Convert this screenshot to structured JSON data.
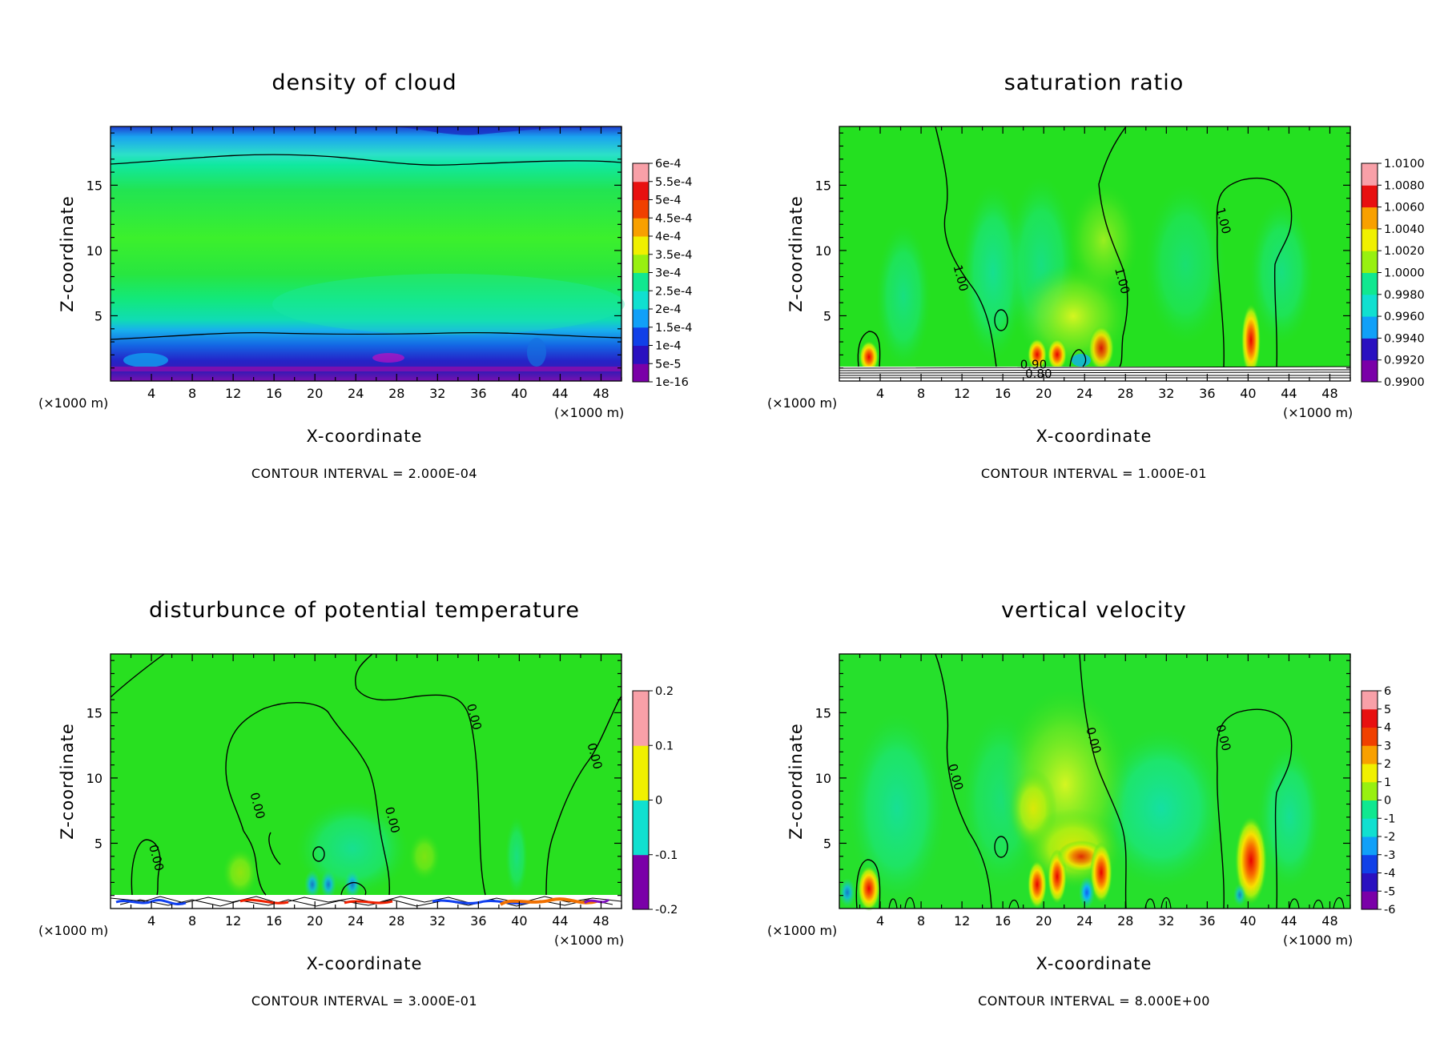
{
  "figure": {
    "x_unit_label": "(×1000 m)",
    "colors": {
      "contour_line": "#000000",
      "background": "#ffffff"
    }
  },
  "chart_data": [
    {
      "type": "heatmap",
      "title": "density of cloud",
      "xlabel": "X-coordinate",
      "ylabel": "Z-coordinate",
      "xlim": [
        0,
        50
      ],
      "ylim": [
        0,
        19.5
      ],
      "x_ticks": [
        4,
        8,
        12,
        16,
        20,
        24,
        28,
        32,
        36,
        40,
        44,
        48
      ],
      "y_ticks": [
        5,
        10,
        15
      ],
      "x_unit": "(×1000 m)",
      "contour_interval": "CONTOUR INTERVAL = 2.000E-04",
      "colorbar": [
        "1e-16",
        "5e-5",
        "1e-4",
        "1.5e-4",
        "2e-4",
        "2.5e-4",
        "3e-4",
        "3.5e-4",
        "4e-4",
        "4.5e-4",
        "5e-4",
        "5.5e-4",
        "6e-4"
      ],
      "contour_labels": []
    },
    {
      "type": "heatmap",
      "title": "saturation ratio",
      "xlabel": "X-coordinate",
      "ylabel": "Z-coordinate",
      "xlim": [
        0,
        50
      ],
      "ylim": [
        0,
        19.5
      ],
      "x_ticks": [
        4,
        8,
        12,
        16,
        20,
        24,
        28,
        32,
        36,
        40,
        44,
        48
      ],
      "y_ticks": [
        5,
        10,
        15
      ],
      "x_unit": "(×1000 m)",
      "contour_interval": "CONTOUR INTERVAL = 1.000E-01",
      "colorbar": [
        "0.9900",
        "0.9920",
        "0.9940",
        "0.9960",
        "0.9980",
        "1.0000",
        "1.0020",
        "1.0040",
        "1.0060",
        "1.0080",
        "1.0100"
      ],
      "contour_labels": [
        {
          "text": "1.00",
          "x": 11.5,
          "y": 7.8
        },
        {
          "text": "1.00",
          "x": 27.3,
          "y": 7.6
        },
        {
          "text": "1.00",
          "x": 37.2,
          "y": 12.2
        },
        {
          "text": "0.90",
          "x": 19.0,
          "y": 0.95
        },
        {
          "text": "0.80",
          "x": 19.5,
          "y": 0.25
        }
      ]
    },
    {
      "type": "heatmap",
      "title": "disturbunce of potential temperature",
      "xlabel": "X-coordinate",
      "ylabel": "Z-coordinate",
      "xlim": [
        0,
        50
      ],
      "ylim": [
        0,
        19.5
      ],
      "x_ticks": [
        4,
        8,
        12,
        16,
        20,
        24,
        28,
        32,
        36,
        40,
        44,
        48
      ],
      "y_ticks": [
        5,
        10,
        15
      ],
      "x_unit": "(×1000 m)",
      "contour_interval": "CONTOUR INTERVAL = 3.000E-01",
      "colorbar": [
        "-0.2",
        "-0.1",
        "0",
        "0.1",
        "0.2"
      ],
      "contour_labels": [
        {
          "text": "0.00",
          "x": 4.1,
          "y": 3.8
        },
        {
          "text": "0.00",
          "x": 14.0,
          "y": 7.8
        },
        {
          "text": "0.00",
          "x": 27.2,
          "y": 6.7
        },
        {
          "text": "0.00",
          "x": 35.2,
          "y": 14.6
        },
        {
          "text": "0.00",
          "x": 47.0,
          "y": 11.6
        }
      ]
    },
    {
      "type": "heatmap",
      "title": "vertical velocity",
      "xlabel": "X-coordinate",
      "ylabel": "Z-coordinate",
      "xlim": [
        0,
        50
      ],
      "ylim": [
        0,
        19.5
      ],
      "x_ticks": [
        4,
        8,
        12,
        16,
        20,
        24,
        28,
        32,
        36,
        40,
        44,
        48
      ],
      "y_ticks": [
        5,
        10,
        15
      ],
      "x_unit": "(×1000 m)",
      "contour_interval": "CONTOUR INTERVAL = 8.000E+00",
      "colorbar": [
        "-6",
        "-5",
        "-4",
        "-3",
        "-2",
        "-1",
        "0",
        "1",
        "2",
        "3",
        "4",
        "5",
        "6"
      ],
      "contour_labels": [
        {
          "text": "0.00",
          "x": 11.0,
          "y": 10.0
        },
        {
          "text": "0.00",
          "x": 24.5,
          "y": 12.8
        },
        {
          "text": "0.00",
          "x": 37.2,
          "y": 13.0
        }
      ]
    }
  ]
}
